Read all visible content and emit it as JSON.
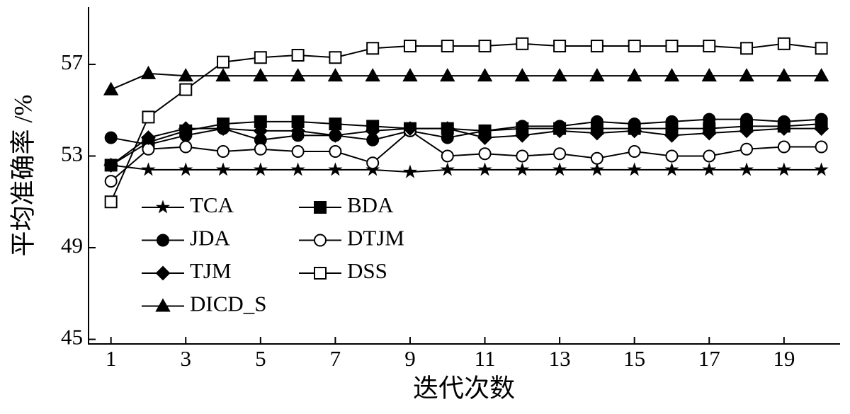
{
  "chart_data": {
    "type": "line",
    "xlabel": "迭代次数",
    "ylabel": "平均准确率 /%",
    "x": [
      1,
      2,
      3,
      4,
      5,
      6,
      7,
      8,
      9,
      10,
      11,
      12,
      13,
      14,
      15,
      16,
      17,
      18,
      19,
      20
    ],
    "xlim": [
      0.4,
      20.5
    ],
    "xticks": [
      1,
      3,
      5,
      7,
      9,
      11,
      13,
      15,
      17,
      19
    ],
    "ylim": [
      44.8,
      59.5
    ],
    "yticks": [
      45,
      49,
      53,
      57
    ],
    "legend": "lower left",
    "series": [
      {
        "name": "TCA",
        "color": "#000000",
        "marker": "star",
        "values": [
          52.6,
          52.4,
          52.4,
          52.4,
          52.4,
          52.4,
          52.4,
          52.4,
          52.3,
          52.4,
          52.4,
          52.4,
          52.4,
          52.4,
          52.4,
          52.4,
          52.4,
          52.4,
          52.4,
          52.4
        ]
      },
      {
        "name": "BDA",
        "color": "#000000",
        "marker": "square-filled",
        "values": [
          52.6,
          53.6,
          54.1,
          54.4,
          54.5,
          54.5,
          54.4,
          54.3,
          54.2,
          54.2,
          54.1,
          54.2,
          54.2,
          54.2,
          54.2,
          54.2,
          54.2,
          54.3,
          54.3,
          54.4
        ]
      },
      {
        "name": "JDA",
        "color": "#000000",
        "marker": "circle-filled",
        "values": [
          53.8,
          53.5,
          53.9,
          54.2,
          53.7,
          53.9,
          53.9,
          53.7,
          54.1,
          53.8,
          54.1,
          54.3,
          54.3,
          54.5,
          54.4,
          54.5,
          54.6,
          54.6,
          54.5,
          54.6
        ]
      },
      {
        "name": "DTJM",
        "color": "#000000",
        "marker": "circle-open",
        "values": [
          51.9,
          53.3,
          53.4,
          53.2,
          53.3,
          53.2,
          53.2,
          52.7,
          54.1,
          53.0,
          53.1,
          53.0,
          53.1,
          52.9,
          53.2,
          53.0,
          53.0,
          53.3,
          53.4,
          53.4
        ]
      },
      {
        "name": "TJM",
        "color": "#000000",
        "marker": "diamond-filled",
        "values": [
          52.6,
          53.8,
          54.2,
          54.2,
          54.1,
          54.1,
          53.9,
          54.1,
          54.2,
          54.2,
          53.8,
          53.9,
          54.1,
          54.0,
          54.1,
          53.9,
          54.0,
          54.1,
          54.2,
          54.2
        ]
      },
      {
        "name": "DSS",
        "color": "#000000",
        "marker": "square-open",
        "values": [
          51.0,
          54.7,
          55.9,
          57.1,
          57.3,
          57.4,
          57.3,
          57.7,
          57.8,
          57.8,
          57.8,
          57.9,
          57.8,
          57.8,
          57.8,
          57.8,
          57.8,
          57.7,
          57.9,
          57.7
        ]
      },
      {
        "name": "DICD_S",
        "color": "#000000",
        "marker": "triangle-filled",
        "values": [
          55.9,
          56.6,
          56.5,
          56.5,
          56.5,
          56.5,
          56.5,
          56.5,
          56.5,
          56.5,
          56.5,
          56.5,
          56.5,
          56.5,
          56.5,
          56.5,
          56.5,
          56.5,
          56.5,
          56.5
        ]
      }
    ]
  }
}
